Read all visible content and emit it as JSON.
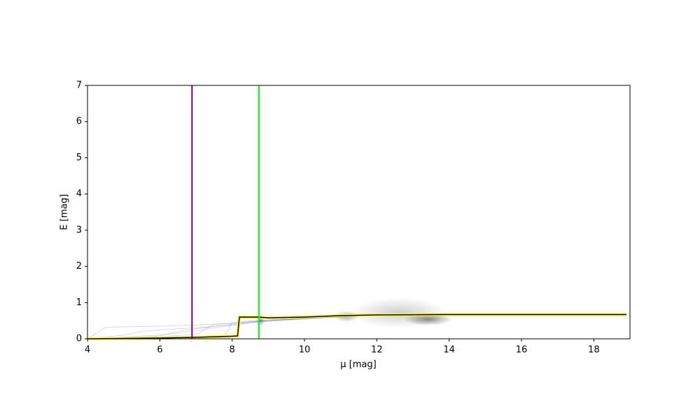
{
  "chart_data": {
    "type": "line",
    "x_label": "μ [mag]",
    "y_label": "E [mag]",
    "xlim": [
      4,
      19
    ],
    "ylim": [
      0,
      7
    ],
    "xticks": [
      4,
      6,
      8,
      10,
      12,
      14,
      16,
      18
    ],
    "yticks": [
      0,
      1,
      2,
      3,
      4,
      5,
      6,
      7
    ],
    "vlines": [
      {
        "x": 6.89,
        "color": "#800080"
      },
      {
        "x": 8.74,
        "color": "#00ff00"
      }
    ],
    "series": [
      {
        "color": "#0000ff",
        "opacity": 0.25,
        "width": 0.6,
        "x": [
          4,
          4.5,
          5,
          6,
          7,
          7.5,
          8,
          8.5,
          9,
          10,
          11,
          12,
          13,
          14,
          15
        ],
        "values": [
          0,
          0.32,
          0.33,
          0.35,
          0.38,
          0.4,
          0.42,
          0.45,
          0.5,
          0.56,
          0.6,
          0.64,
          0.66,
          0.67,
          0.67
        ]
      },
      {
        "color": "#0000ff",
        "opacity": 0.25,
        "width": 0.6,
        "x": [
          4,
          5,
          6,
          7,
          7.5,
          8,
          8.5,
          9,
          10,
          11,
          12,
          13,
          14,
          15
        ],
        "values": [
          0,
          0.05,
          0.1,
          0.22,
          0.3,
          0.36,
          0.45,
          0.52,
          0.58,
          0.62,
          0.65,
          0.66,
          0.67,
          0.67
        ]
      },
      {
        "color": "#0000ff",
        "opacity": 0.25,
        "width": 0.6,
        "x": [
          4,
          5,
          6,
          6.5,
          7,
          8,
          8.5,
          9,
          10,
          11,
          12,
          13,
          14
        ],
        "values": [
          0,
          0.02,
          0.08,
          0.2,
          0.28,
          0.4,
          0.48,
          0.5,
          0.57,
          0.6,
          0.64,
          0.66,
          0.67
        ]
      },
      {
        "color": "#0000ff",
        "opacity": 0.25,
        "width": 0.6,
        "x": [
          4,
          5,
          6,
          7,
          7.8,
          8,
          8.5,
          9,
          10,
          11,
          12,
          13,
          14,
          15
        ],
        "values": [
          0,
          0.01,
          0.03,
          0.06,
          0.1,
          0.45,
          0.5,
          0.52,
          0.55,
          0.6,
          0.63,
          0.66,
          0.67,
          0.67
        ]
      },
      {
        "color": "#0000ff",
        "opacity": 0.25,
        "width": 0.6,
        "x": [
          4,
          5,
          5.5,
          6,
          7,
          8,
          8.5,
          9,
          10,
          11,
          12,
          13,
          14
        ],
        "values": [
          0,
          0.1,
          0.2,
          0.25,
          0.3,
          0.38,
          0.44,
          0.48,
          0.55,
          0.62,
          0.65,
          0.66,
          0.67
        ]
      },
      {
        "color": "#0000ff",
        "opacity": 0.25,
        "width": 0.6,
        "x": [
          4,
          5,
          6,
          7,
          7.5,
          8,
          8.5,
          9,
          10,
          11,
          12,
          13,
          14,
          15
        ],
        "values": [
          0,
          0.03,
          0.06,
          0.12,
          0.4,
          0.44,
          0.47,
          0.5,
          0.56,
          0.61,
          0.64,
          0.66,
          0.67,
          0.67
        ]
      },
      {
        "color": "#000000",
        "outline": "#ffff00",
        "opacity": 1,
        "width": 1.5,
        "x": [
          4,
          5,
          6,
          7,
          8,
          8.15,
          8.2,
          8.7,
          9,
          10,
          11,
          12,
          14,
          16,
          18.9
        ],
        "values": [
          0,
          0.01,
          0.02,
          0.04,
          0.07,
          0.08,
          0.6,
          0.6,
          0.58,
          0.6,
          0.64,
          0.66,
          0.67,
          0.67,
          0.67
        ]
      }
    ]
  }
}
